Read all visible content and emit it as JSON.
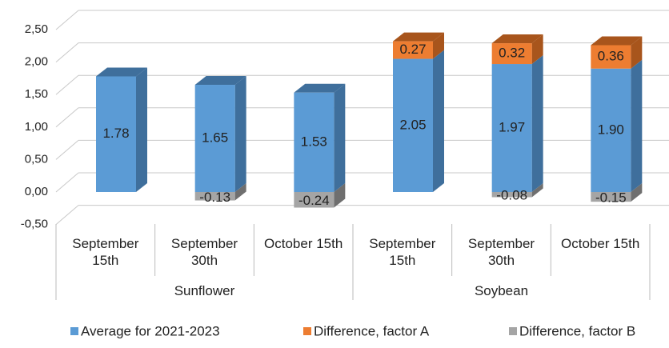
{
  "chart_data": {
    "type": "bar3d_stacked",
    "groups": [
      {
        "name": "Sunflower",
        "categories": [
          "September 15th",
          "September 30th",
          "October 15th"
        ]
      },
      {
        "name": "Soybean",
        "categories": [
          "September 15th",
          "September 30th",
          "October 15th"
        ]
      }
    ],
    "series": [
      {
        "name": "Average for 2021-2023",
        "color": "#5b9bd5",
        "side": "#3f6f9c",
        "values": [
          1.78,
          1.65,
          1.53,
          2.05,
          1.97,
          1.9
        ],
        "value_labels": [
          "1.78",
          "1.65",
          "1.53",
          "2.05",
          "1.97",
          "1.90"
        ]
      },
      {
        "name": "Difference, factor A",
        "color": "#ed7d31",
        "side": "#a8551c",
        "values": [
          null,
          null,
          null,
          0.27,
          0.32,
          0.36
        ],
        "value_labels": [
          null,
          null,
          null,
          "0.27",
          "0.32",
          "0.36"
        ]
      },
      {
        "name": "Difference, factor B",
        "color": "#a5a5a5",
        "side": "#6f6f6f",
        "values": [
          null,
          -0.13,
          -0.24,
          null,
          -0.08,
          -0.15
        ],
        "value_labels": [
          null,
          "-0.13",
          "-0.24",
          null,
          "-0.08",
          "-0.15"
        ]
      }
    ],
    "ylim": [
      -0.5,
      2.5
    ],
    "yticks": [
      {
        "value": -0.5,
        "label": "-0,50"
      },
      {
        "value": 0,
        "label": "0,00"
      },
      {
        "value": 0.5,
        "label": "0,50"
      },
      {
        "value": 1,
        "label": "1,00"
      },
      {
        "value": 1.5,
        "label": "1,50"
      },
      {
        "value": 2,
        "label": "2,00"
      },
      {
        "value": 2.5,
        "label": "2,50"
      }
    ],
    "grid": true
  }
}
